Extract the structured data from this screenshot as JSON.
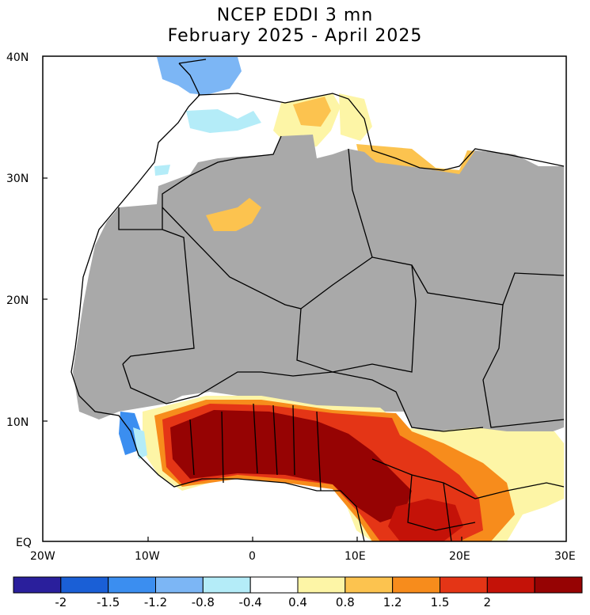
{
  "title": {
    "line1": "NCEP EDDI 3 mn",
    "line2": "February 2025 - April 2025"
  },
  "axes": {
    "y_labels": [
      "40N",
      "30N",
      "20N",
      "10N",
      "EQ"
    ],
    "x_labels": [
      "20W",
      "10W",
      "0",
      "10E",
      "20E",
      "30E"
    ]
  },
  "colorbar": {
    "colors": [
      "#2a1f9c",
      "#1a5fd6",
      "#3b8ef0",
      "#7cb6f5",
      "#b4ecf8",
      "#ffffff",
      "#fdf5a6",
      "#fcc34f",
      "#f78c1c",
      "#e43516",
      "#c41208",
      "#960303"
    ],
    "labels": [
      "-2",
      "-1.5",
      "-1.2",
      "-0.8",
      "-0.4",
      "0.4",
      "0.8",
      "1.2",
      "1.5",
      "2"
    ]
  },
  "map_colors": {
    "grey_mask": "#a9a9a9",
    "ocean": "#ffffff"
  }
}
